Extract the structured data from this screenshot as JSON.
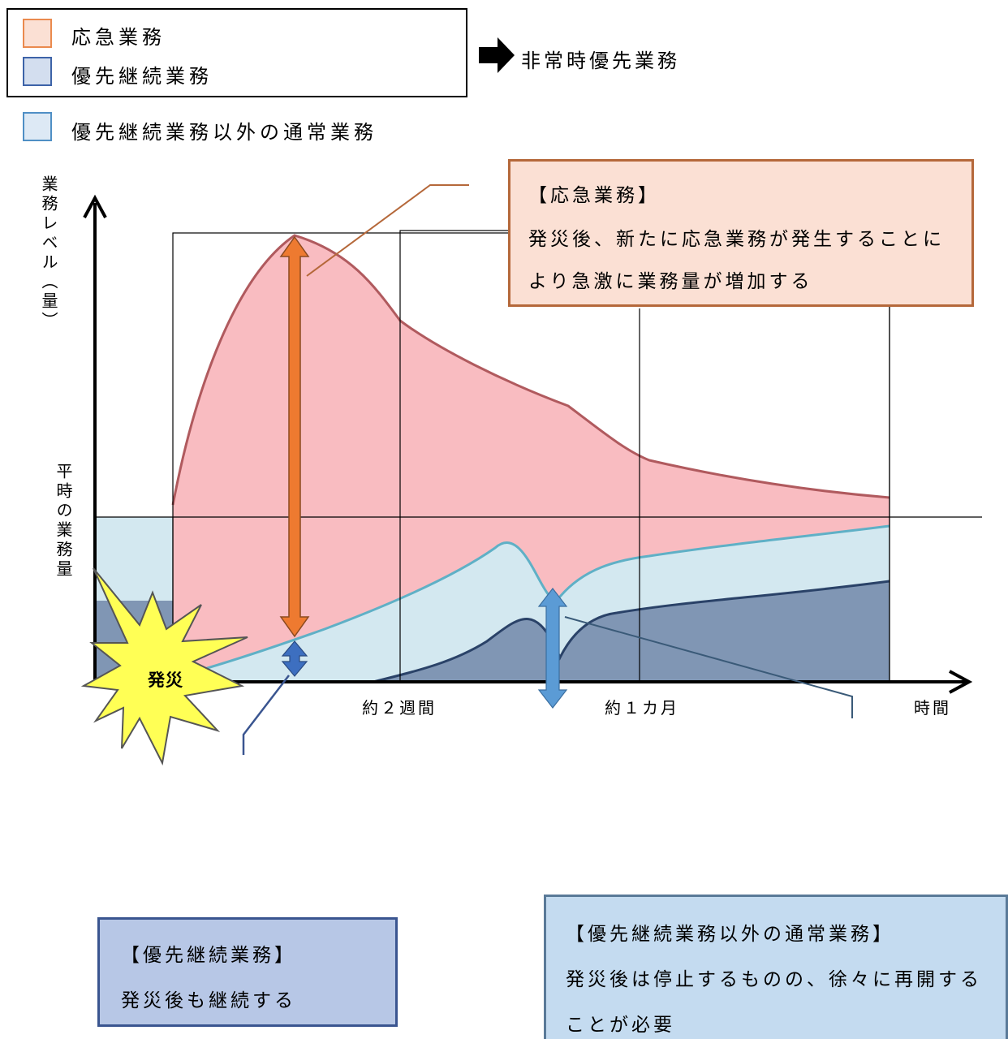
{
  "legend": {
    "items": [
      {
        "label": "応急業務",
        "fill": "#fbe0d4",
        "border": "#ea8a4e"
      },
      {
        "label": "優先継続業務",
        "fill": "#d3deef",
        "border": "#3d63a8"
      }
    ],
    "arrow_label": "非常時優先業務",
    "extra": {
      "label": "優先継続業務以外の通常業務",
      "fill": "#dde9f5",
      "border": "#4f8fc5"
    }
  },
  "axes": {
    "y_label": "業務レベル（量）",
    "baseline_label": "平時の業務量",
    "x_label": "時間",
    "ticks": [
      "約２週間",
      "約１カ月"
    ]
  },
  "burst_label": "発災",
  "callouts": {
    "emergency": {
      "title": "【応急業務】",
      "lines": [
        "発災後、新たに応急業務が発生することに",
        "より急激に業務量が増加する"
      ]
    },
    "priority": {
      "title": "【優先継続業務】",
      "lines": [
        "発災後も継続する"
      ]
    },
    "normal": {
      "title": "【優先継続業務以外の通常業務】",
      "lines": [
        "発災後は停止するものの、徐々に再開する",
        "ことが必要"
      ]
    }
  },
  "colors": {
    "emergency_area": "#f9bcc1",
    "emergency_line": "#b05a5e",
    "normal_area": "#d3e8f0",
    "normal_line": "#5fb0c6",
    "priority_area": "#8096b4",
    "priority_line": "#2a4268",
    "orange_arrow": "#ee7a30",
    "blue_arrow": "#5b9bd5",
    "burst": "#ffff55"
  }
}
